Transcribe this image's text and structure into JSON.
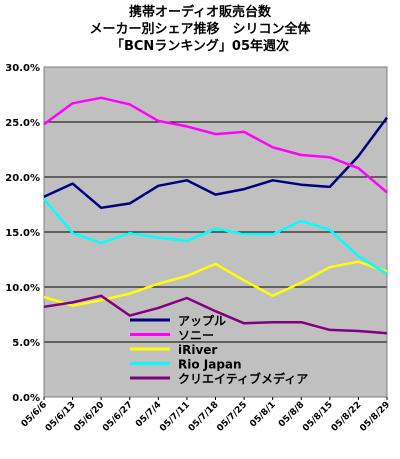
{
  "chart_data": {
    "type": "line",
    "title": [
      "携帯オーディオ販売台数",
      "メーカー別シェア推移　シリコン全体",
      "「BCNランキング」05年週次"
    ],
    "xlabel": "",
    "ylabel": "",
    "categories": [
      "05/6/6",
      "05/6/13",
      "05/6/20",
      "05/6/27",
      "05/7/4",
      "05/7/11",
      "05/7/18",
      "05/7/25",
      "05/8/1",
      "05/8/8",
      "05/8/15",
      "05/8/22",
      "05/8/29"
    ],
    "y_ticks": [
      "30.0%",
      "25.0%",
      "20.0%",
      "15.0%",
      "10.0%",
      "5.0%",
      "0.0%"
    ],
    "ylim": [
      0,
      30
    ],
    "legend_position": "bottom-center inside plot",
    "plot_background": "#c0c0c0",
    "gridlines": "horizontal",
    "series": [
      {
        "name": "アップル",
        "color": "#000080",
        "values": [
          18.2,
          19.4,
          17.2,
          17.6,
          19.2,
          19.7,
          18.4,
          18.9,
          19.7,
          19.3,
          19.1,
          21.9,
          25.4
        ]
      },
      {
        "name": "ソニー",
        "color": "#ff00ff",
        "values": [
          24.8,
          26.7,
          27.2,
          26.6,
          25.1,
          24.6,
          23.9,
          24.1,
          22.7,
          22.0,
          21.8,
          20.8,
          18.6
        ]
      },
      {
        "name": "iRiver",
        "color": "#ffff00",
        "values": [
          9.1,
          8.3,
          8.8,
          9.4,
          10.3,
          11.0,
          12.1,
          10.6,
          9.2,
          10.4,
          11.8,
          12.3,
          11.4
        ]
      },
      {
        "name": "Rio Japan",
        "color": "#00ffff",
        "values": [
          18.0,
          14.9,
          14.0,
          14.9,
          14.5,
          14.2,
          15.3,
          14.8,
          14.8,
          16.0,
          15.2,
          12.8,
          11.2
        ]
      },
      {
        "name": "クリエイティブメディア",
        "color": "#800080",
        "values": [
          8.2,
          8.6,
          9.2,
          7.4,
          8.1,
          9.0,
          7.8,
          6.7,
          6.8,
          6.8,
          6.1,
          6.0,
          5.8
        ]
      }
    ]
  }
}
